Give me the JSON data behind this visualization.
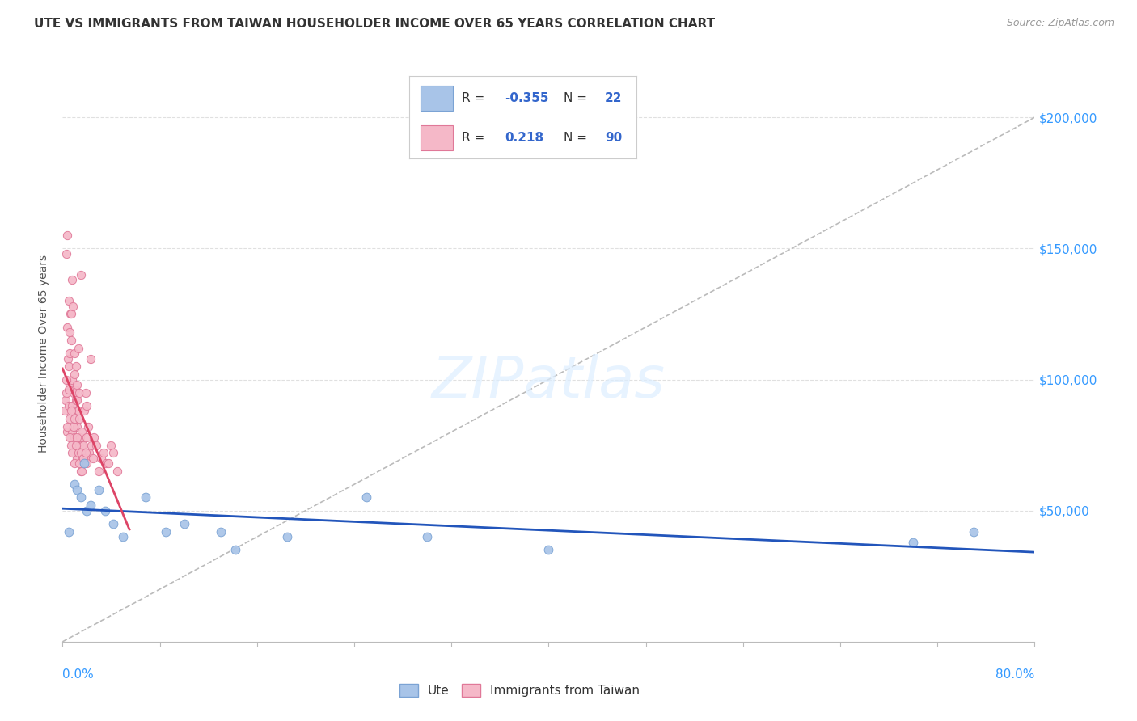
{
  "title": "UTE VS IMMIGRANTS FROM TAIWAN HOUSEHOLDER INCOME OVER 65 YEARS CORRELATION CHART",
  "source": "Source: ZipAtlas.com",
  "ylabel": "Householder Income Over 65 years",
  "ute_R": -0.355,
  "ute_N": 22,
  "taiwan_R": 0.218,
  "taiwan_N": 90,
  "xlim": [
    0.0,
    80.0
  ],
  "ylim": [
    0,
    220000
  ],
  "ute_color": "#a8c4e8",
  "ute_edge": "#7ba3d4",
  "taiwan_color": "#f5b8c8",
  "taiwan_edge": "#e07898",
  "trend_ute_color": "#2255bb",
  "trend_taiwan_color": "#dd4466",
  "diag_color": "#bbbbbb",
  "background_color": "#ffffff",
  "ute_x": [
    0.5,
    1.0,
    1.2,
    1.5,
    1.8,
    2.0,
    2.3,
    3.0,
    3.5,
    4.2,
    5.0,
    6.8,
    8.5,
    10.0,
    13.0,
    14.2,
    18.5,
    25.0,
    30.0,
    40.0,
    70.0,
    75.0
  ],
  "ute_y": [
    42000,
    60000,
    58000,
    55000,
    68000,
    50000,
    52000,
    58000,
    50000,
    45000,
    40000,
    55000,
    42000,
    45000,
    42000,
    35000,
    40000,
    55000,
    40000,
    35000,
    38000,
    42000
  ],
  "taiwan_x": [
    0.2,
    0.25,
    0.3,
    0.3,
    0.35,
    0.4,
    0.4,
    0.45,
    0.5,
    0.5,
    0.5,
    0.55,
    0.6,
    0.6,
    0.6,
    0.65,
    0.7,
    0.7,
    0.7,
    0.75,
    0.8,
    0.8,
    0.8,
    0.85,
    0.9,
    0.9,
    0.95,
    1.0,
    1.0,
    1.0,
    1.05,
    1.1,
    1.1,
    1.15,
    1.2,
    1.2,
    1.2,
    1.25,
    1.3,
    1.3,
    1.35,
    1.4,
    1.4,
    1.45,
    1.5,
    1.5,
    1.55,
    1.6,
    1.65,
    1.7,
    1.75,
    1.8,
    1.85,
    1.9,
    1.95,
    2.0,
    2.0,
    2.1,
    2.2,
    2.3,
    2.4,
    2.5,
    2.6,
    2.8,
    3.0,
    3.2,
    3.4,
    3.6,
    3.8,
    4.0,
    4.2,
    4.5,
    0.28,
    0.38,
    0.48,
    0.58,
    0.68,
    0.78,
    0.88,
    0.98,
    1.08,
    1.18,
    1.28,
    1.38,
    1.48,
    1.58,
    1.68,
    1.78,
    1.88,
    1.98
  ],
  "taiwan_y": [
    88000,
    92000,
    95000,
    148000,
    155000,
    120000,
    80000,
    108000,
    105000,
    130000,
    90000,
    118000,
    110000,
    98000,
    85000,
    125000,
    125000,
    115000,
    75000,
    138000,
    100000,
    90000,
    80000,
    128000,
    95000,
    88000,
    102000,
    110000,
    85000,
    78000,
    96000,
    92000,
    105000,
    92000,
    98000,
    82000,
    70000,
    88000,
    88000,
    112000,
    85000,
    75000,
    95000,
    78000,
    140000,
    65000,
    75000,
    80000,
    70000,
    75000,
    68000,
    88000,
    72000,
    95000,
    70000,
    90000,
    78000,
    82000,
    72000,
    108000,
    75000,
    70000,
    78000,
    75000,
    65000,
    70000,
    72000,
    68000,
    68000,
    75000,
    72000,
    65000,
    100000,
    82000,
    96000,
    78000,
    88000,
    72000,
    82000,
    68000,
    75000,
    78000,
    72000,
    68000,
    72000,
    65000,
    70000,
    68000,
    72000,
    68000
  ]
}
